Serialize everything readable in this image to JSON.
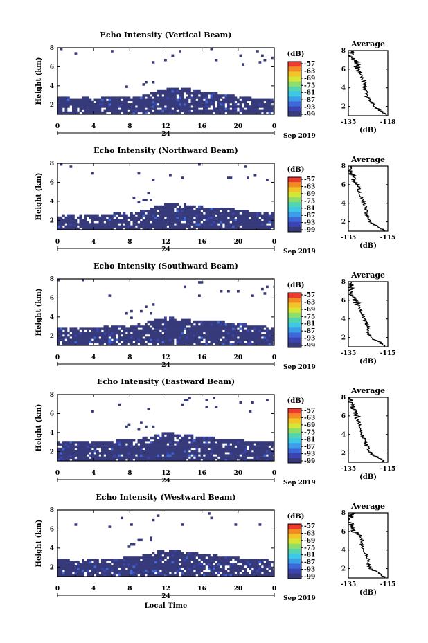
{
  "figure": {
    "date_label": "Sep 2019",
    "xlabel": "Local Time",
    "ylabel": "Height (km)",
    "colorbar_unit": "(dB)",
    "colorbar_ticks": [
      "-57",
      "-63",
      "-69",
      "-75",
      "-81",
      "-87",
      "-93",
      "-99"
    ],
    "colorbar_colors": [
      "#ee3a2e",
      "#f38b24",
      "#f2c428",
      "#d6e637",
      "#8fde6a",
      "#55d4b1",
      "#3ec8e6",
      "#3a9ee8",
      "#3d68d8",
      "#3b44b0",
      "#363a7a"
    ],
    "fill_color": "#363a7a",
    "avg_title": "Average",
    "avg_xlabel": "(dB)"
  },
  "chart_data": [
    {
      "type": "heatmap",
      "title": "Echo Intensity (Vertical Beam)",
      "xlabel": "Local Time",
      "ylabel": "Height (km)",
      "xticks": [
        "0",
        "4",
        "8",
        "12",
        "16",
        "20",
        "0"
      ],
      "day_label": "24",
      "xlim": [
        0,
        24
      ],
      "ylim": [
        1,
        8
      ],
      "yticks": [
        "2",
        "4",
        "6",
        "8"
      ],
      "colorbar": {
        "label": "(dB)",
        "min": -99,
        "max": -57
      },
      "echo_top_km": [
        2.9,
        2.9,
        2.8,
        2.9,
        2.8,
        2.9,
        2.9,
        3.0,
        3.0,
        3.1,
        3.3,
        3.6,
        3.9,
        4.0,
        3.9,
        3.7,
        3.5,
        3.4,
        3.3,
        3.2,
        3.0,
        2.9,
        2.8,
        2.8,
        2.7
      ],
      "average_profile": {
        "title": "Average",
        "xlabel": "(dB)",
        "xticks": [
          "-135",
          "-118"
        ],
        "yticks": [
          "2",
          "4",
          "6",
          "8"
        ],
        "xlim": [
          -135,
          -118
        ],
        "ylim": [
          1,
          8
        ],
        "height_km": [
          1.0,
          1.5,
          2.0,
          2.5,
          3.0,
          3.5,
          4.0,
          4.5,
          5.0,
          5.5,
          6.0,
          6.5,
          7.0,
          7.5,
          8.0
        ],
        "value_db": [
          -118,
          -121,
          -124,
          -125,
          -127,
          -127,
          -128,
          -128,
          -129,
          -130,
          -131,
          -131,
          -133,
          -134,
          -134
        ]
      }
    },
    {
      "type": "heatmap",
      "title": "Echo Intensity (Northward Beam)",
      "xlabel": "Local Time",
      "ylabel": "Height (km)",
      "xticks": [
        "0",
        "4",
        "8",
        "12",
        "16",
        "20",
        "0"
      ],
      "day_label": "24",
      "xlim": [
        0,
        24
      ],
      "ylim": [
        1,
        8
      ],
      "yticks": [
        "2",
        "4",
        "6",
        "8"
      ],
      "colorbar": {
        "label": "(dB)",
        "min": -99,
        "max": -57
      },
      "echo_top_km": [
        2.6,
        2.7,
        2.6,
        2.7,
        2.7,
        2.8,
        2.9,
        3.0,
        3.0,
        3.1,
        3.3,
        3.7,
        4.0,
        3.9,
        3.8,
        3.7,
        3.6,
        3.5,
        3.4,
        3.4,
        3.2,
        3.1,
        3.0,
        2.9,
        2.9
      ],
      "average_profile": {
        "title": "Average",
        "xlabel": "(dB)",
        "xticks": [
          "-135",
          "-115"
        ],
        "yticks": [
          "2",
          "4",
          "6",
          "8"
        ],
        "xlim": [
          -135,
          -115
        ],
        "ylim": [
          1,
          8
        ],
        "height_km": [
          1.0,
          1.5,
          2.0,
          2.5,
          3.0,
          3.5,
          4.0,
          4.5,
          5.0,
          5.5,
          6.0,
          6.5,
          7.0,
          7.5,
          8.0
        ],
        "value_db": [
          -116,
          -120,
          -124,
          -125,
          -126,
          -126,
          -127,
          -128,
          -129,
          -130,
          -131,
          -132,
          -133,
          -134,
          -134
        ]
      }
    },
    {
      "type": "heatmap",
      "title": "Echo Intensity (Southward Beam)",
      "xlabel": "Local Time",
      "ylabel": "Height (km)",
      "xticks": [
        "0",
        "4",
        "8",
        "12",
        "16",
        "20",
        "0"
      ],
      "day_label": "24",
      "xlim": [
        0,
        24
      ],
      "ylim": [
        1,
        8
      ],
      "yticks": [
        "2",
        "4",
        "6",
        "8"
      ],
      "colorbar": {
        "label": "(dB)",
        "min": -99,
        "max": -57
      },
      "echo_top_km": [
        3.0,
        3.0,
        2.9,
        3.0,
        3.0,
        3.1,
        3.1,
        3.2,
        3.2,
        3.4,
        3.6,
        3.9,
        4.1,
        4.0,
        3.9,
        3.8,
        3.7,
        3.6,
        3.6,
        3.5,
        3.4,
        3.3,
        3.2,
        3.1,
        3.0
      ],
      "average_profile": {
        "title": "Average",
        "xlabel": "(dB)",
        "xticks": [
          "-135",
          "-115"
        ],
        "yticks": [
          "2",
          "4",
          "6",
          "8"
        ],
        "xlim": [
          -135,
          -115
        ],
        "ylim": [
          1,
          8
        ],
        "height_km": [
          1.0,
          1.5,
          2.0,
          2.5,
          3.0,
          3.5,
          4.0,
          4.5,
          5.0,
          5.5,
          6.0,
          6.5,
          7.0,
          7.5,
          8.0
        ],
        "value_db": [
          -116,
          -119,
          -124,
          -125,
          -125,
          -126,
          -127,
          -128,
          -129,
          -130,
          -132,
          -133,
          -134,
          -134,
          -133
        ]
      }
    },
    {
      "type": "heatmap",
      "title": "Echo Intensity (Eastward Beam)",
      "xlabel": "Local Time",
      "ylabel": "Height (km)",
      "xticks": [
        "0",
        "4",
        "8",
        "12",
        "16",
        "20",
        "0"
      ],
      "day_label": "24",
      "xlim": [
        0,
        24
      ],
      "ylim": [
        1,
        8
      ],
      "yticks": [
        "2",
        "4",
        "6",
        "8"
      ],
      "colorbar": {
        "label": "(dB)",
        "min": -99,
        "max": -57
      },
      "echo_top_km": [
        3.2,
        3.2,
        3.1,
        3.2,
        3.2,
        3.3,
        3.3,
        3.4,
        3.4,
        3.5,
        3.7,
        4.0,
        4.1,
        4.0,
        3.9,
        3.8,
        3.7,
        3.6,
        3.5,
        3.4,
        3.4,
        3.3,
        3.3,
        3.2,
        3.2
      ],
      "average_profile": {
        "title": "Average",
        "xlabel": "(dB)",
        "xticks": [
          "-135",
          "-115"
        ],
        "yticks": [
          "2",
          "4",
          "6",
          "8"
        ],
        "xlim": [
          -135,
          -115
        ],
        "ylim": [
          1,
          8
        ],
        "height_km": [
          1.0,
          1.5,
          2.0,
          2.5,
          3.0,
          3.5,
          4.0,
          4.5,
          5.0,
          5.5,
          6.0,
          6.5,
          7.0,
          7.5,
          8.0
        ],
        "value_db": [
          -116,
          -120,
          -124,
          -125,
          -126,
          -127,
          -128,
          -129,
          -129,
          -130,
          -131,
          -132,
          -133,
          -134,
          -134
        ]
      }
    },
    {
      "type": "heatmap",
      "title": "Echo Intensity (Westward Beam)",
      "xlabel": "Local Time",
      "ylabel": "Height (km)",
      "xticks": [
        "0",
        "4",
        "8",
        "12",
        "16",
        "20",
        "0"
      ],
      "day_label": "24",
      "xlim": [
        0,
        24
      ],
      "ylim": [
        1,
        8
      ],
      "yticks": [
        "2",
        "4",
        "6",
        "8"
      ],
      "colorbar": {
        "label": "(dB)",
        "min": -99,
        "max": -57
      },
      "echo_top_km": [
        2.9,
        2.9,
        2.8,
        2.9,
        2.9,
        3.0,
        3.0,
        3.1,
        3.2,
        3.3,
        3.5,
        3.8,
        4.0,
        3.9,
        3.7,
        3.6,
        3.5,
        3.4,
        3.3,
        3.2,
        3.1,
        3.0,
        2.9,
        2.9,
        2.8
      ],
      "average_profile": {
        "title": "Average",
        "xlabel": "(dB)",
        "xticks": [
          "-135",
          "-115"
        ],
        "yticks": [
          "2",
          "4",
          "6",
          "8"
        ],
        "xlim": [
          -135,
          -115
        ],
        "ylim": [
          1,
          8
        ],
        "height_km": [
          1.0,
          1.5,
          2.0,
          2.5,
          3.0,
          3.5,
          4.0,
          4.5,
          5.0,
          5.5,
          6.0,
          6.5,
          7.0,
          7.5,
          8.0
        ],
        "value_db": [
          -116,
          -119,
          -124,
          -125,
          -125,
          -126,
          -127,
          -128,
          -128,
          -129,
          -132,
          -133,
          -134,
          -134,
          -133
        ]
      }
    }
  ]
}
